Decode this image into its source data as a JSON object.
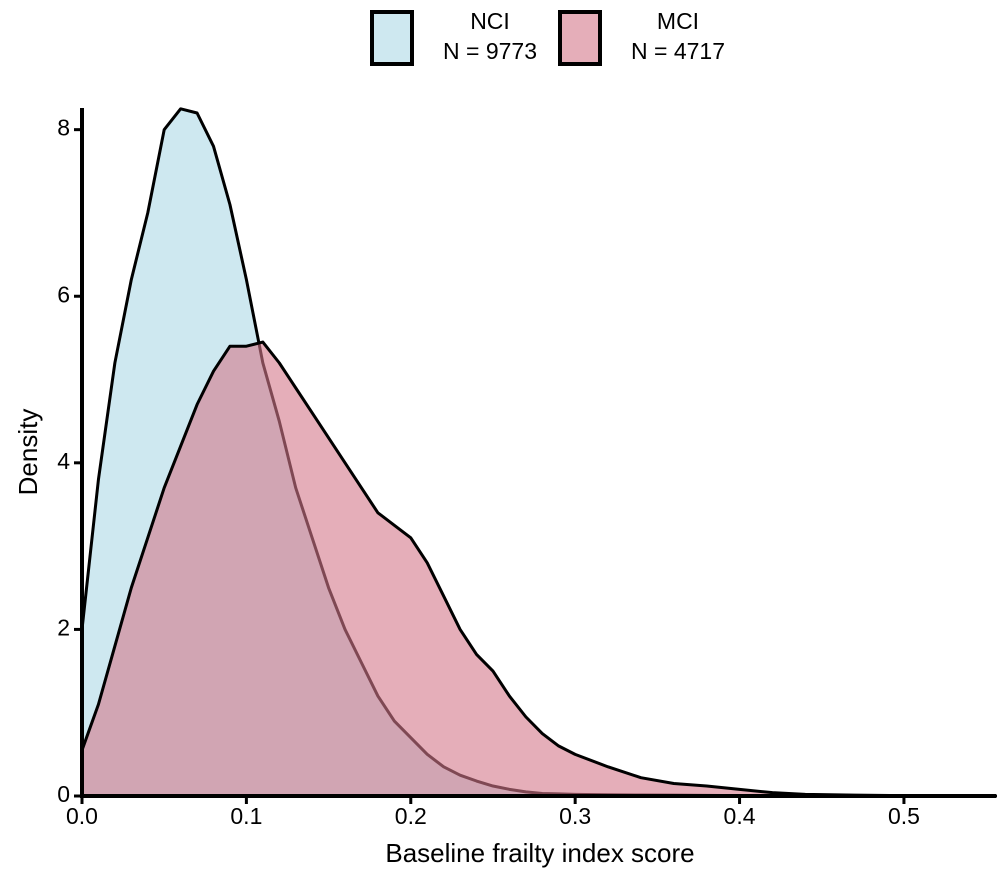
{
  "chart_data": {
    "type": "density",
    "xlabel": "Baseline frailty index score",
    "ylabel": "Density",
    "x": [
      0,
      0.01,
      0.02,
      0.03,
      0.04,
      0.05,
      0.06,
      0.07,
      0.08,
      0.09,
      0.1,
      0.11,
      0.12,
      0.13,
      0.14,
      0.15,
      0.16,
      0.17,
      0.18,
      0.19,
      0.2,
      0.21,
      0.22,
      0.23,
      0.24,
      0.25,
      0.26,
      0.27,
      0.28,
      0.29,
      0.3,
      0.32,
      0.34,
      0.36,
      0.38,
      0.4,
      0.42,
      0.44,
      0.47,
      0.5,
      0.556
    ],
    "series": [
      {
        "name": "NCI",
        "sample_label": "N = 9773",
        "color": "#add8e6",
        "values": [
          2.0,
          3.8,
          5.2,
          6.2,
          7.0,
          8.0,
          8.25,
          8.2,
          7.8,
          7.1,
          6.2,
          5.2,
          4.5,
          3.7,
          3.1,
          2.5,
          2.0,
          1.6,
          1.2,
          0.9,
          0.7,
          0.5,
          0.35,
          0.25,
          0.18,
          0.12,
          0.08,
          0.05,
          0.03,
          0.025,
          0.02,
          0.015,
          0.012,
          0.01,
          0.008,
          0.005,
          0.004,
          0.003,
          0.002,
          0.001,
          0
        ]
      },
      {
        "name": "MCI",
        "sample_label": "N = 4717",
        "color": "#d4788a",
        "values": [
          0.55,
          1.1,
          1.8,
          2.5,
          3.1,
          3.7,
          4.2,
          4.7,
          5.1,
          5.4,
          5.4,
          5.45,
          5.2,
          4.9,
          4.6,
          4.3,
          4.0,
          3.7,
          3.4,
          3.25,
          3.1,
          2.8,
          2.4,
          2.0,
          1.7,
          1.5,
          1.2,
          0.95,
          0.75,
          0.6,
          0.5,
          0.35,
          0.22,
          0.15,
          0.12,
          0.08,
          0.04,
          0.02,
          0.01,
          0.005,
          0
        ]
      }
    ],
    "xlim": [
      0,
      0.556
    ],
    "ylim": [
      0,
      8.26
    ],
    "xticks": [
      {
        "value": 0,
        "label": "0.0"
      },
      0.1,
      0.2,
      0.3,
      0.4,
      0.5
    ],
    "yticks": [
      0,
      2,
      4,
      6,
      8
    ],
    "legend": "top"
  }
}
